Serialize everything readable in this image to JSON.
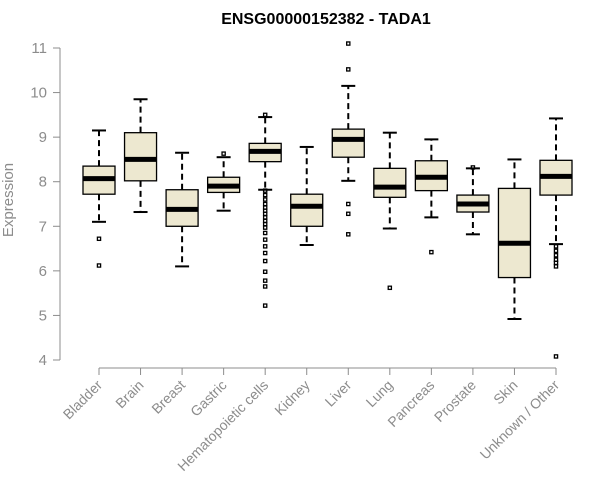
{
  "chart_data": {
    "type": "box",
    "title": "ENSG00000152382 - TADA1",
    "xlabel": "",
    "ylabel": "Expression",
    "ylim": [
      4,
      11
    ],
    "yticks": [
      4,
      5,
      6,
      7,
      8,
      9,
      10,
      11
    ],
    "grid": false,
    "categories": [
      "Bladder",
      "Brain",
      "Breast",
      "Gastric",
      "Hematopoietic cells",
      "Kidney",
      "Liver",
      "Lung",
      "Pancreas",
      "Prostate",
      "Skin",
      "Unknown / Other"
    ],
    "boxes": [
      {
        "name": "Bladder",
        "whisker_low": 7.1,
        "q1": 7.72,
        "median": 8.07,
        "q3": 8.35,
        "whisker_high": 9.15,
        "outliers": [
          6.72,
          6.12
        ]
      },
      {
        "name": "Brain",
        "whisker_low": 7.32,
        "q1": 8.02,
        "median": 8.5,
        "q3": 9.1,
        "whisker_high": 9.85,
        "outliers": []
      },
      {
        "name": "Breast",
        "whisker_low": 6.1,
        "q1": 7.0,
        "median": 7.38,
        "q3": 7.82,
        "whisker_high": 8.65,
        "outliers": []
      },
      {
        "name": "Gastric",
        "whisker_low": 7.35,
        "q1": 7.76,
        "median": 7.9,
        "q3": 8.1,
        "whisker_high": 8.55,
        "outliers": [
          8.63
        ]
      },
      {
        "name": "Hematopoietic cells",
        "whisker_low": 7.82,
        "q1": 8.45,
        "median": 8.68,
        "q3": 8.86,
        "whisker_high": 9.45,
        "outliers": [
          9.5,
          7.8,
          7.7,
          7.6,
          7.5,
          7.42,
          7.35,
          7.28,
          7.2,
          7.12,
          7.05,
          6.97,
          6.85,
          6.7,
          6.55,
          6.4,
          6.22,
          5.98,
          5.78,
          5.65,
          5.22
        ]
      },
      {
        "name": "Kidney",
        "whisker_low": 6.58,
        "q1": 7.0,
        "median": 7.45,
        "q3": 7.72,
        "whisker_high": 8.78,
        "outliers": []
      },
      {
        "name": "Liver",
        "whisker_low": 8.02,
        "q1": 8.55,
        "median": 8.95,
        "q3": 9.18,
        "whisker_high": 10.15,
        "outliers": [
          11.1,
          10.52,
          7.5,
          7.28,
          6.82
        ]
      },
      {
        "name": "Lung",
        "whisker_low": 6.95,
        "q1": 7.65,
        "median": 7.88,
        "q3": 8.3,
        "whisker_high": 9.1,
        "outliers": [
          5.62
        ]
      },
      {
        "name": "Pancreas",
        "whisker_low": 7.2,
        "q1": 7.8,
        "median": 8.1,
        "q3": 8.47,
        "whisker_high": 8.95,
        "outliers": [
          6.42
        ]
      },
      {
        "name": "Prostate",
        "whisker_low": 6.82,
        "q1": 7.32,
        "median": 7.5,
        "q3": 7.7,
        "whisker_high": 8.3,
        "outliers": [
          8.32
        ]
      },
      {
        "name": "Skin",
        "whisker_low": 4.92,
        "q1": 5.85,
        "median": 6.62,
        "q3": 7.85,
        "whisker_high": 8.5,
        "outliers": []
      },
      {
        "name": "Unknown / Other",
        "whisker_low": 6.6,
        "q1": 7.7,
        "median": 8.12,
        "q3": 8.48,
        "whisker_high": 9.42,
        "outliers": [
          6.55,
          6.45,
          6.35,
          6.25,
          6.18,
          6.1,
          4.08
        ]
      }
    ]
  }
}
